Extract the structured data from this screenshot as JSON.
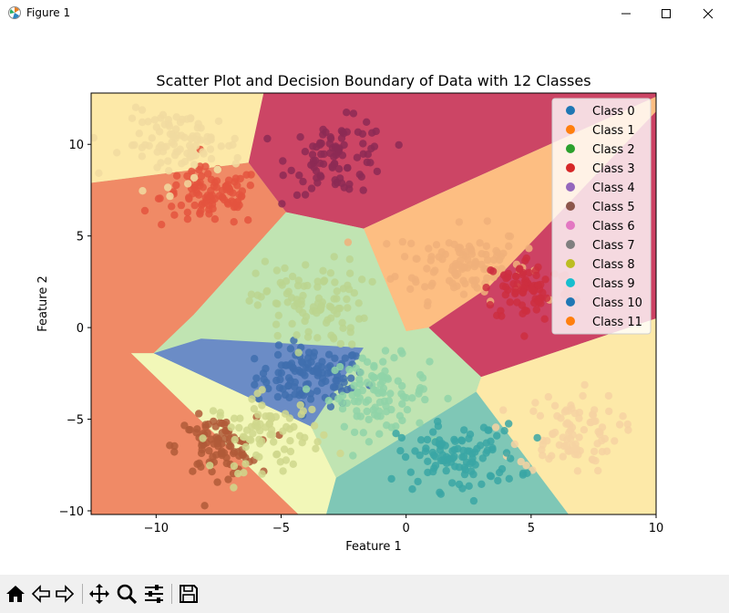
{
  "window": {
    "title": "Figure 1",
    "icons": [
      "matplotlib-icon",
      "minimize-icon",
      "maximize-icon",
      "close-icon"
    ]
  },
  "toolbar": {
    "buttons": [
      "home-icon",
      "back-icon",
      "forward-icon",
      "pan-icon",
      "zoom-icon",
      "configure-subplots-icon",
      "save-icon"
    ]
  },
  "chart_data": {
    "type": "scatter",
    "title": "Scatter Plot and Decision Boundary of Data with 12 Classes",
    "xlabel": "Feature 1",
    "ylabel": "Feature 2",
    "xlim": [
      -12.6,
      10.0
    ],
    "ylim": [
      -10.2,
      12.8
    ],
    "xticks": [
      -10,
      -5,
      0,
      5,
      10
    ],
    "yticks": [
      -10,
      -5,
      0,
      5,
      10
    ],
    "grid": false,
    "legend_position": "top-right",
    "series": [
      {
        "name": "Class 0",
        "color": "#1f77b4",
        "center": [
          -3.8,
          -2.7
        ],
        "spread": [
          1.1,
          0.8
        ],
        "n": 110,
        "point_color": "#3f6fae"
      },
      {
        "name": "Class 1",
        "color": "#ff7f0e",
        "center": [
          2.2,
          3.5
        ],
        "spread": [
          1.3,
          1.0
        ],
        "n": 110,
        "point_color": "#f0b07a"
      },
      {
        "name": "Class 2",
        "color": "#2ca02c",
        "center": [
          -1.1,
          -3.6
        ],
        "spread": [
          1.0,
          1.0
        ],
        "n": 100,
        "point_color": "#8fd4a8"
      },
      {
        "name": "Class 3",
        "color": "#d62728",
        "center": [
          -7.8,
          7.1
        ],
        "spread": [
          1.0,
          0.8
        ],
        "n": 100,
        "point_color": "#e4543e"
      },
      {
        "name": "Class 4",
        "color": "#9467bd",
        "center": [
          -2.7,
          9.3
        ],
        "spread": [
          1.0,
          1.0
        ],
        "n": 90,
        "point_color": "#8c2a55"
      },
      {
        "name": "Class 5",
        "color": "#8c564b",
        "center": [
          -7.6,
          -6.5
        ],
        "spread": [
          0.8,
          0.8
        ],
        "n": 90,
        "point_color": "#b05a38"
      },
      {
        "name": "Class 6",
        "color": "#e377c2",
        "center": [
          4.9,
          2.1
        ],
        "spread": [
          0.9,
          0.9
        ],
        "n": 80,
        "point_color": "#cc2e40"
      },
      {
        "name": "Class 7",
        "color": "#7f7f7f",
        "center": [
          6.5,
          -5.7
        ],
        "spread": [
          1.0,
          1.1
        ],
        "n": 90,
        "point_color": "#f6d2a2"
      },
      {
        "name": "Class 8",
        "color": "#bcbd22",
        "center": [
          -3.8,
          1.3
        ],
        "spread": [
          1.1,
          1.2
        ],
        "n": 100,
        "point_color": "#bbd58f"
      },
      {
        "name": "Class 9",
        "color": "#17becf",
        "center": [
          2.1,
          -7.1
        ],
        "spread": [
          1.2,
          0.9
        ],
        "n": 110,
        "point_color": "#3aa6a4"
      },
      {
        "name": "Class 10",
        "color": "#1f77b4",
        "center": [
          -8.9,
          10.0
        ],
        "spread": [
          1.2,
          0.9
        ],
        "n": 100,
        "point_color": "#f1dba0"
      },
      {
        "name": "Class 11",
        "color": "#ff7f0e",
        "center": [
          -5.5,
          -5.8
        ],
        "spread": [
          1.1,
          1.0
        ],
        "n": 80,
        "point_color": "#cfd78c"
      }
    ],
    "regions": [
      {
        "class": "Class 3",
        "color": "#f08a66",
        "polygon": [
          [
            -12.6,
            7.9
          ],
          [
            -6.3,
            9.0
          ],
          [
            -4.8,
            6.3
          ],
          [
            -8.5,
            0.7
          ],
          [
            -10.1,
            -1.4
          ],
          [
            -11.0,
            -1.4
          ],
          [
            -4.3,
            -10.2
          ],
          [
            -12.6,
            -10.2
          ]
        ]
      },
      {
        "class": "Class 10",
        "color": "#fde9a8",
        "polygon": [
          [
            -12.6,
            12.8
          ],
          [
            -5.7,
            12.8
          ],
          [
            -6.3,
            9.0
          ],
          [
            -12.6,
            7.9
          ]
        ]
      },
      {
        "class": "Class 4",
        "color": "#cc4565",
        "polygon": [
          [
            -5.7,
            12.8
          ],
          [
            10.0,
            12.8
          ],
          [
            10.0,
            12.6
          ],
          [
            1.0,
            7.1
          ],
          [
            -1.7,
            5.4
          ],
          [
            -4.8,
            6.3
          ],
          [
            -6.3,
            9.0
          ]
        ]
      },
      {
        "class": "Class 1",
        "color": "#fdbe82",
        "polygon": [
          [
            1.0,
            7.1
          ],
          [
            10.0,
            12.6
          ],
          [
            10.0,
            11.8
          ],
          [
            3.3,
            2.2
          ],
          [
            0.9,
            0.0
          ],
          [
            0.0,
            -0.2
          ],
          [
            -1.7,
            5.4
          ]
        ]
      },
      {
        "class": "Class 6",
        "color": "#cd4264",
        "polygon": [
          [
            10.0,
            11.8
          ],
          [
            3.3,
            2.2
          ],
          [
            0.9,
            0.0
          ],
          [
            3.0,
            -2.7
          ],
          [
            10.0,
            0.5
          ]
        ]
      },
      {
        "class": "Class 7",
        "color": "#fde9a8",
        "polygon": [
          [
            10.0,
            0.5
          ],
          [
            3.0,
            -2.7
          ],
          [
            2.8,
            -3.5
          ],
          [
            6.5,
            -10.2
          ],
          [
            10.0,
            -10.2
          ]
        ]
      },
      {
        "class": "Class 9",
        "color": "#7fc7b6",
        "polygon": [
          [
            2.8,
            -3.5
          ],
          [
            6.5,
            -10.2
          ],
          [
            -3.2,
            -10.2
          ],
          [
            -2.8,
            -8.2
          ]
        ]
      },
      {
        "class": "Class 8",
        "color": "#c0e4b2",
        "polygon": [
          [
            -4.8,
            6.3
          ],
          [
            -1.7,
            5.4
          ],
          [
            0.0,
            -0.2
          ],
          [
            0.9,
            0.0
          ],
          [
            3.0,
            -2.7
          ],
          [
            2.8,
            -3.5
          ],
          [
            -2.8,
            -8.2
          ],
          [
            -3.6,
            -6.0
          ],
          [
            -3.8,
            -5.4
          ],
          [
            -1.7,
            -1.1
          ],
          [
            -8.2,
            -0.6
          ],
          [
            -10.1,
            -1.4
          ],
          [
            -8.5,
            0.7
          ]
        ]
      },
      {
        "class": "Class 0",
        "color": "#6b8cc6",
        "polygon": [
          [
            -10.1,
            -1.4
          ],
          [
            -8.2,
            -0.6
          ],
          [
            -1.7,
            -1.1
          ],
          [
            -3.8,
            -5.4
          ]
        ]
      },
      {
        "class": "Class 11",
        "color": "#f2f7b8",
        "polygon": [
          [
            -11.0,
            -1.4
          ],
          [
            -10.1,
            -1.4
          ],
          [
            -3.8,
            -5.4
          ],
          [
            -3.6,
            -6.0
          ],
          [
            -2.8,
            -8.2
          ],
          [
            -3.2,
            -10.2
          ],
          [
            -4.3,
            -10.2
          ]
        ]
      }
    ]
  }
}
